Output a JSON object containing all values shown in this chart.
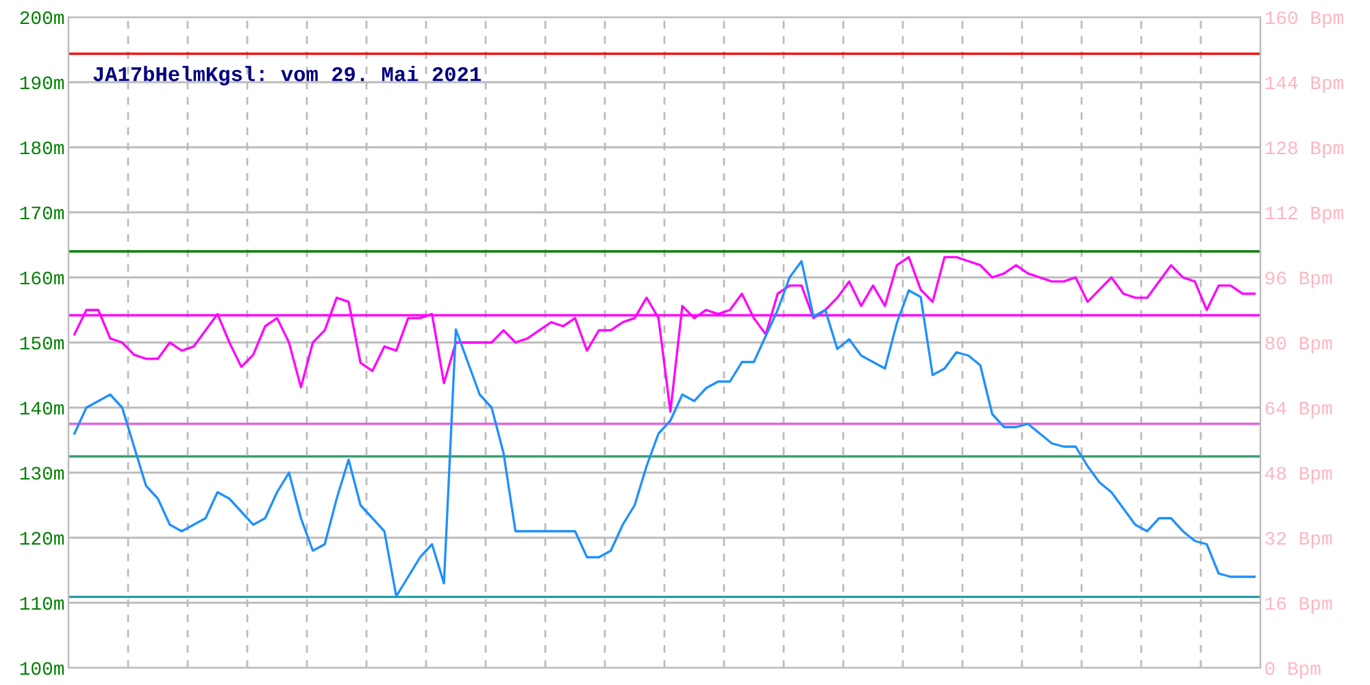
{
  "chart_data": {
    "type": "line",
    "title": "JA17bHelmKgsl: vom 29. Mai 2021",
    "categories": [
      null,
      null,
      null,
      null,
      null,
      null,
      null,
      null,
      null,
      null,
      null,
      null,
      null,
      null,
      null,
      null,
      null,
      null,
      null,
      null,
      null,
      null,
      null,
      null,
      null,
      null,
      null,
      null,
      null,
      null,
      null,
      null,
      null,
      null,
      null,
      null,
      null,
      null,
      null,
      null,
      null,
      null,
      null,
      null,
      null,
      null,
      null,
      null,
      null,
      null,
      null,
      null,
      null,
      null,
      null,
      null,
      null,
      null,
      null,
      null,
      null,
      null,
      null,
      null,
      null,
      null,
      null,
      null,
      null,
      null,
      null,
      null,
      null,
      null,
      null,
      null,
      null,
      null,
      null,
      null,
      null,
      null,
      null,
      null,
      null,
      null,
      null,
      null,
      null,
      null,
      null,
      null,
      null,
      null,
      null,
      null,
      null,
      null,
      null,
      null
    ],
    "ylim": [
      100,
      200
    ],
    "yticks": [
      {
        "value": 100,
        "label": "100m"
      },
      {
        "value": 110,
        "label": "110m"
      },
      {
        "value": 120,
        "label": "120m"
      },
      {
        "value": 130,
        "label": "130m"
      },
      {
        "value": 140,
        "label": "140m"
      },
      {
        "value": 150,
        "label": "150m"
      },
      {
        "value": 160,
        "label": "160m"
      },
      {
        "value": 170,
        "label": "170m"
      },
      {
        "value": 180,
        "label": "180m"
      },
      {
        "value": 190,
        "label": "190m"
      },
      {
        "value": 200,
        "label": "200m"
      }
    ],
    "y2lim": [
      0,
      160
    ],
    "y2ticks": [
      {
        "value": 0,
        "label": "0 Bpm"
      },
      {
        "value": 16,
        "label": "16 Bpm"
      },
      {
        "value": 32,
        "label": "32 Bpm"
      },
      {
        "value": 48,
        "label": "48 Bpm"
      },
      {
        "value": 64,
        "label": "64 Bpm"
      },
      {
        "value": 80,
        "label": "80 Bpm"
      },
      {
        "value": 96,
        "label": "96 Bpm"
      },
      {
        "value": 112,
        "label": "112 Bpm"
      },
      {
        "value": 128,
        "label": "128 Bpm"
      },
      {
        "value": 144,
        "label": "144 Bpm"
      },
      {
        "value": 160,
        "label": "160 Bpm"
      }
    ],
    "grid": true,
    "marker": "none",
    "line_style": "solid",
    "ref_lines": [
      {
        "axis": "y2",
        "value": 151,
        "color": "#ff0000"
      },
      {
        "axis": "y",
        "value": 164,
        "color": "#008000"
      },
      {
        "axis": "y2",
        "value": 86.7,
        "color": "#ff00ff"
      },
      {
        "axis": "y2",
        "value": 60,
        "color": "#e066e0"
      },
      {
        "axis": "y",
        "value": 132.5,
        "color": "#3c9f6f"
      },
      {
        "axis": "y",
        "value": 110.9,
        "color": "#20a0a0"
      }
    ],
    "series": [
      {
        "color": "#1e90ff",
        "axis": "y",
        "values": [
          136,
          140,
          141,
          142,
          140,
          134,
          128,
          126,
          122,
          121,
          122,
          123,
          127,
          126,
          124,
          122,
          123,
          127,
          130,
          123,
          118,
          119,
          126,
          132,
          125,
          123,
          121,
          111,
          114,
          117,
          119,
          113,
          152,
          147,
          142,
          140,
          133,
          121,
          121,
          121,
          121,
          121,
          121,
          117,
          117,
          118,
          122,
          125,
          131,
          136,
          138,
          142,
          141,
          143,
          144,
          144,
          147,
          147,
          151,
          155,
          160,
          162.5,
          154,
          155,
          149,
          150.5,
          148,
          147,
          146,
          153,
          158,
          157,
          145,
          146,
          148.5,
          148,
          146.5,
          139,
          137,
          137,
          137.5,
          136,
          134.5,
          134,
          134,
          131,
          128.5,
          127,
          124.5,
          122,
          121,
          123,
          123,
          121,
          119.5,
          119,
          114.5,
          114,
          114,
          114
        ]
      },
      {
        "color": "#ff00ff",
        "axis": "y2",
        "values": [
          82,
          88,
          88,
          81,
          80,
          77,
          76,
          76,
          80,
          78,
          79,
          83,
          87,
          80,
          74,
          77,
          84,
          86,
          80,
          69,
          80,
          83,
          91,
          90,
          75,
          73,
          79,
          78,
          86,
          86,
          87,
          70,
          80,
          80,
          80,
          80,
          83,
          80,
          81,
          83,
          85,
          84,
          86,
          78,
          83,
          83,
          85,
          86,
          91,
          86,
          63,
          89,
          86,
          88,
          87,
          88,
          92,
          86,
          82,
          92,
          94,
          94,
          86,
          88,
          91,
          95,
          89,
          94,
          89,
          99,
          101,
          93,
          90,
          101,
          101,
          100,
          99,
          96,
          97,
          99,
          97,
          96,
          95,
          95,
          96,
          90,
          93,
          96,
          92,
          91,
          91,
          95,
          99,
          96,
          95,
          88,
          94,
          94,
          92,
          92
        ]
      }
    ]
  }
}
